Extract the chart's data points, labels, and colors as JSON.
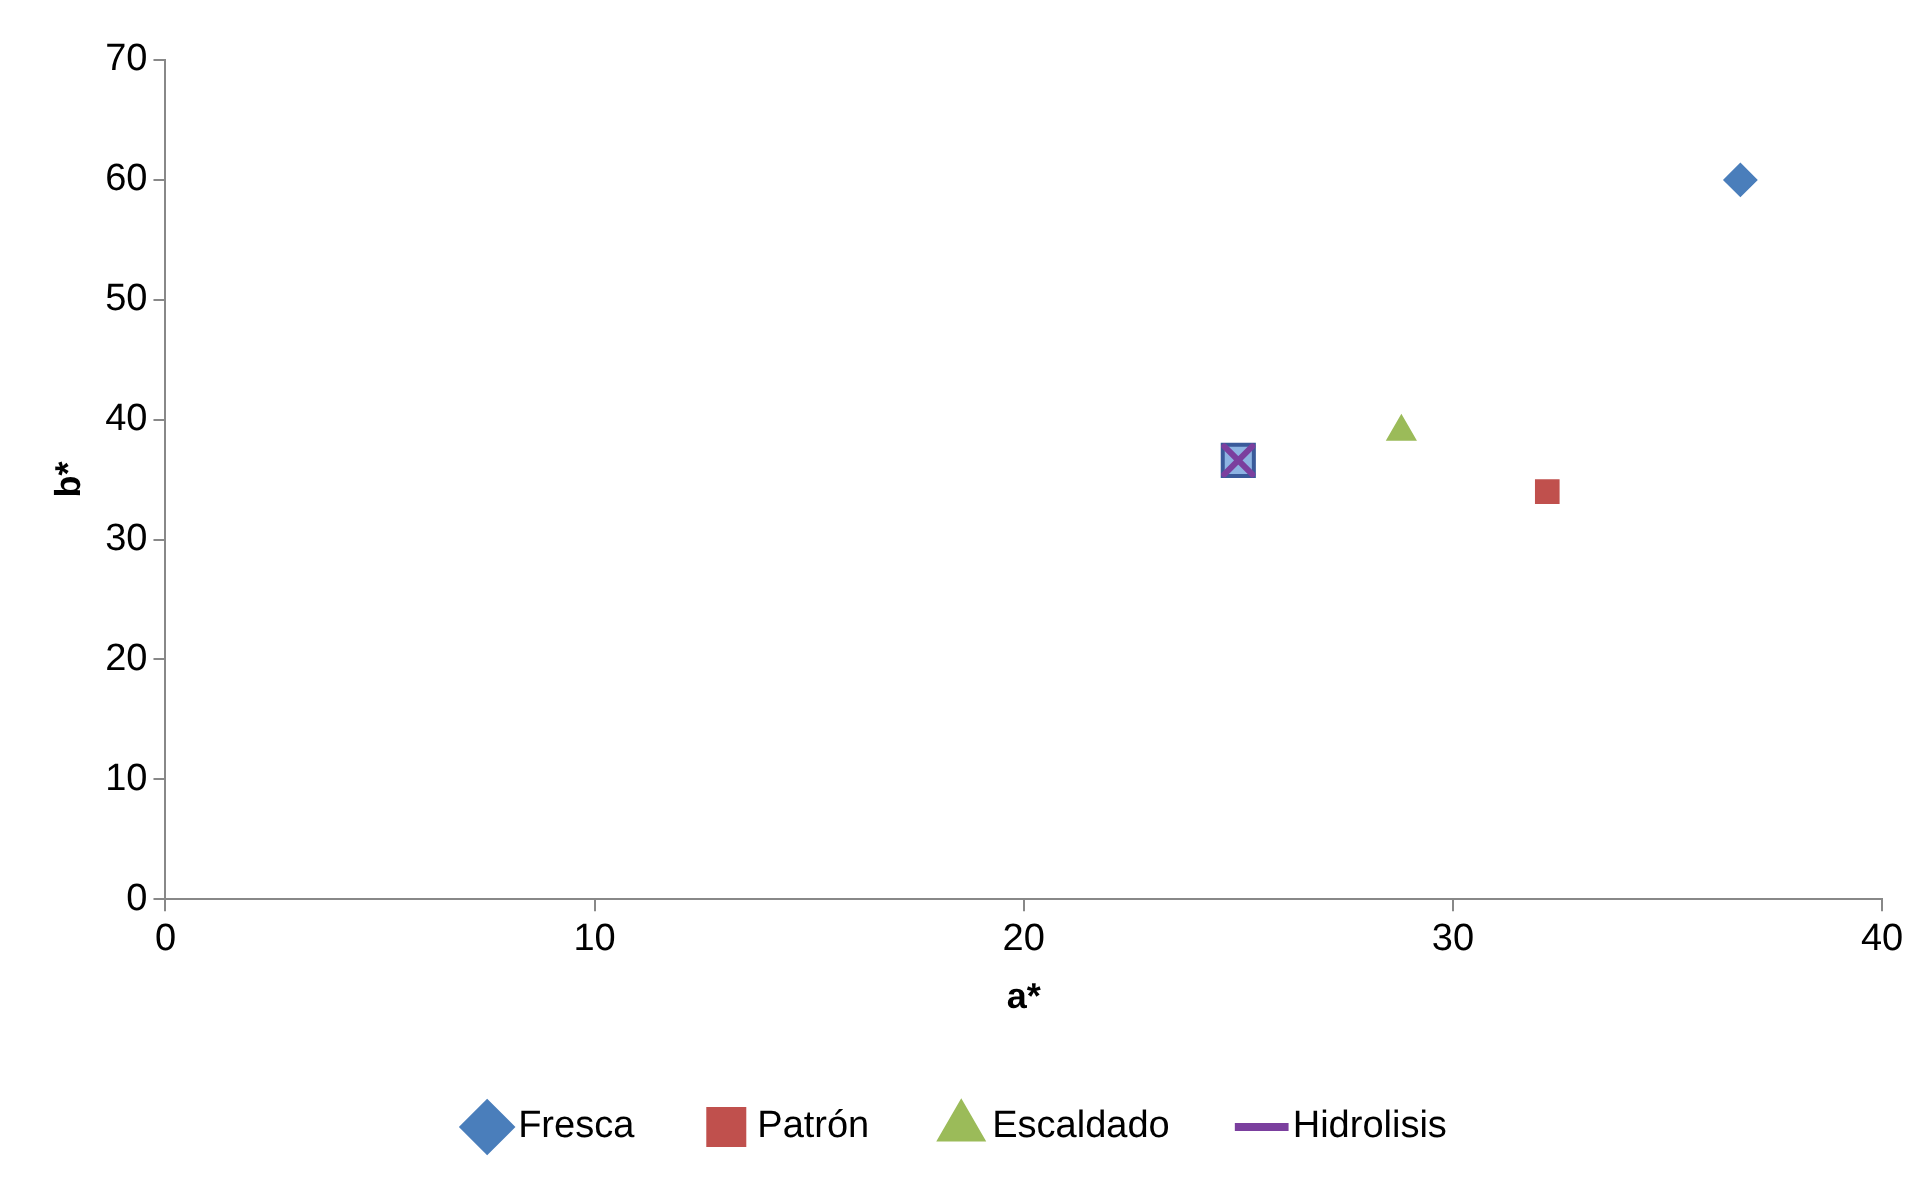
{
  "chart_data": {
    "type": "scatter",
    "xlabel": "a*",
    "ylabel": "b*",
    "xlim": [
      0,
      40
    ],
    "xticks": [
      0,
      10,
      20,
      30,
      40
    ],
    "ylim": [
      0,
      70
    ],
    "yticks": [
      0,
      10,
      20,
      30,
      40,
      50,
      60,
      70
    ],
    "grid": false,
    "legend": "bottom",
    "series": [
      {
        "name": "Fresca",
        "color": "#4a7ebb",
        "marker": "diamond",
        "x": [
          36.7
        ],
        "values": [
          60
        ]
      },
      {
        "name": "Patrón",
        "color": "#c0504d",
        "marker": "square",
        "x": [
          32.2
        ],
        "values": [
          34
        ]
      },
      {
        "name": "Escaldado",
        "color": "#9bbb59",
        "marker": "triangle",
        "x": [
          28.8
        ],
        "values": [
          39
        ]
      },
      {
        "name": "Hidrolisis",
        "color": "#7b3f9e",
        "marker": "cross",
        "line_style": "solid",
        "x": [
          25
        ],
        "values": [
          36.6
        ]
      }
    ]
  }
}
